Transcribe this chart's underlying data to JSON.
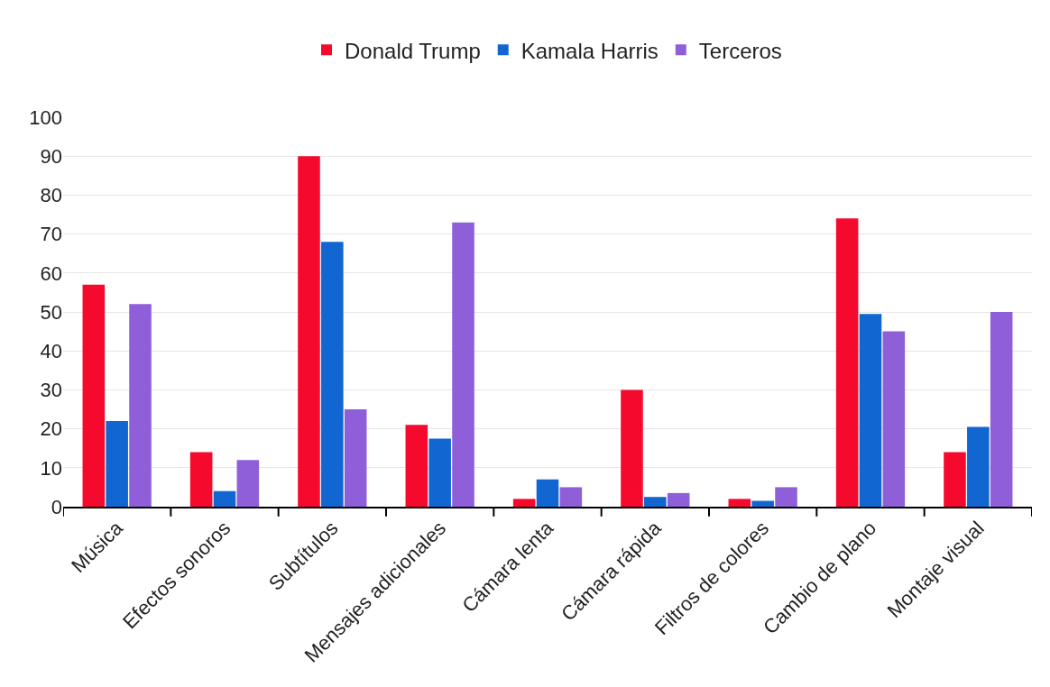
{
  "chart_data": {
    "type": "bar",
    "categories": [
      "Música",
      "Efectos sonoros",
      "Subtítulos",
      "Mensajes adicionales",
      "Cámara lenta",
      "Cámara rápida",
      "Filtros de colores",
      "Cambio de plano",
      "Montaje visual"
    ],
    "series": [
      {
        "name": "Donald Trump",
        "color": "#f50a2d",
        "values": [
          57,
          14,
          90,
          21,
          2,
          30,
          2,
          74,
          14
        ]
      },
      {
        "name": "Kamala Harris",
        "color": "#1166d1",
        "values": [
          22,
          4,
          68,
          17.5,
          7,
          2.5,
          1.5,
          49.5,
          20.5
        ]
      },
      {
        "name": "Terceros",
        "color": "#8e5fd9",
        "values": [
          52,
          12,
          25,
          73,
          5,
          3.5,
          5,
          45,
          50
        ]
      }
    ],
    "ylim": [
      0,
      100
    ],
    "yticks": [
      0,
      10,
      20,
      30,
      40,
      50,
      60,
      70,
      80,
      90,
      100
    ],
    "grid": "y",
    "legend": "top"
  }
}
